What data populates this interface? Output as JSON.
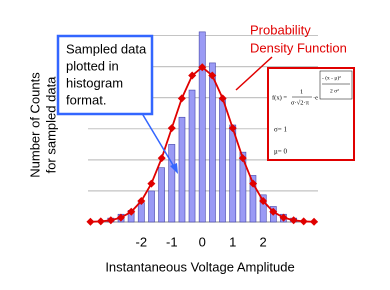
{
  "chart_data": {
    "type": "histogram",
    "x_label": "Instantaneous Voltage Amplitude",
    "y_label": [
      "Number of Counts",
      "for sampled data"
    ],
    "xlim": [
      -3.75,
      3.8
    ],
    "ylim": [
      0,
      0.5
    ],
    "xticks": [
      -2,
      -1,
      0,
      1,
      2
    ],
    "ygrid": [
      0.08,
      0.16,
      0.24,
      0.32,
      0.4,
      0.48
    ],
    "bins": [
      -3.5,
      -3.17,
      -2.83,
      -2.5,
      -2.17,
      -1.83,
      -1.5,
      -1.17,
      -0.83,
      -0.5,
      -0.17,
      0.17,
      0.5,
      0.83,
      1.17,
      1.5,
      1.83,
      2.17,
      2.5,
      2.83,
      3.17,
      3.5
    ],
    "values": [
      0,
      0.01,
      0.02,
      0.03,
      0.05,
      0.08,
      0.14,
      0.2,
      0.27,
      0.34,
      0.49,
      0.41,
      0.32,
      0.25,
      0.18,
      0.12,
      0.07,
      0.04,
      0.02,
      0.01,
      0
    ],
    "color": "#9a9af5",
    "pdf": {
      "color": "#e00000",
      "x": [
        -3.67,
        -3.33,
        -3,
        -2.67,
        -2.33,
        -2,
        -1.67,
        -1.33,
        -1,
        -0.67,
        -0.33,
        0,
        0.33,
        0.67,
        1,
        1.33,
        1.67,
        2,
        2.33,
        2.67,
        3,
        3.33,
        3.67
      ],
      "values": [
        0.0005,
        0.0016,
        0.0044,
        0.0113,
        0.0264,
        0.054,
        0.0989,
        0.1647,
        0.242,
        0.3187,
        0.3775,
        0.3989,
        0.3775,
        0.3187,
        0.242,
        0.1647,
        0.0989,
        0.054,
        0.0264,
        0.0113,
        0.0044,
        0.0016,
        0.0005
      ]
    },
    "sampled_note": [
      "Sampled data",
      "plotted in",
      "histogram",
      "format."
    ],
    "pdf_note": [
      "Probability",
      "Density Function"
    ],
    "formula": {
      "lhs": "f(x) =",
      "numerator": "1",
      "denominator": "σ·√2·π",
      "base": "·e",
      "exp_num": "- (x - μ)²",
      "exp_den": "2 σ²",
      "sigma": "σ= 1",
      "mu": "μ= 0"
    }
  }
}
